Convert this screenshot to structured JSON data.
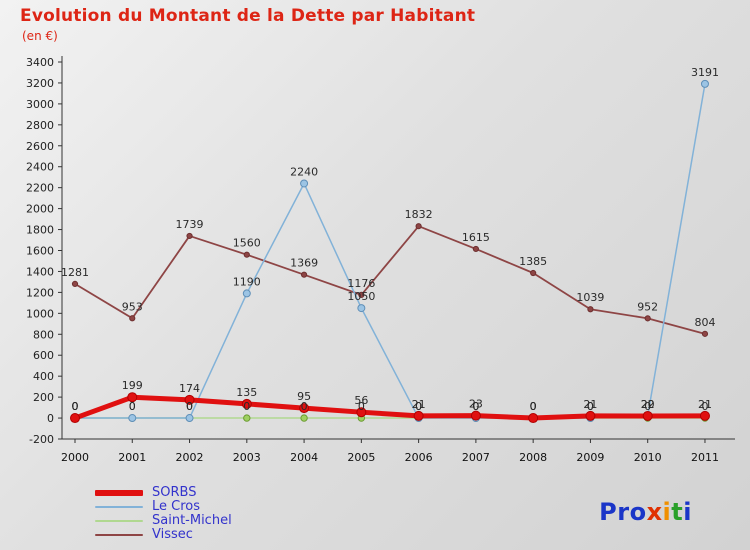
{
  "title": "Evolution du Montant de la Dette par Habitant",
  "subtitle": "(en €)",
  "colors": {
    "title_text": "#dd2515",
    "legend_text": "#3333cc",
    "axis": "#333333",
    "value_label": "#2a2a2a"
  },
  "chart_data": {
    "type": "line",
    "title": "Evolution du Montant de la Dette par Habitant",
    "subtitle": "(en €)",
    "xlabel": "",
    "ylabel": "en €",
    "ylim": [
      -200,
      3400
    ],
    "ytick_step": 200,
    "grid": false,
    "legend_position": "bottom-left",
    "x": [
      2000,
      2001,
      2002,
      2003,
      2004,
      2005,
      2006,
      2007,
      2008,
      2009,
      2010,
      2011
    ],
    "series": [
      {
        "name": "SORBS",
        "color": "#e01010",
        "line_width": 5,
        "legend_thickness": 6,
        "marker_r": 4.5,
        "marker_fill": "#e01010",
        "marker_stroke": "#b00000",
        "values": [
          0,
          199,
          174,
          135,
          95,
          56,
          21,
          23,
          0,
          21,
          20,
          21
        ]
      },
      {
        "name": "Le Cros",
        "color": "#82b2d8",
        "line_width": 1.5,
        "legend_thickness": 2,
        "marker_r": 3.5,
        "marker_fill": "#9cc4e4",
        "marker_stroke": "#5f8fb8",
        "values": [
          0,
          0,
          0,
          1190,
          2240,
          1050,
          0,
          0,
          0,
          0,
          22,
          3191
        ]
      },
      {
        "name": "Saint-Michel",
        "color": "#b0d890",
        "line_width": 1.5,
        "legend_thickness": 2,
        "marker_r": 3.2,
        "marker_fill": "#9ed060",
        "marker_stroke": "#6a9a30",
        "values": [
          0,
          0,
          0,
          0,
          0,
          0,
          0,
          0,
          0,
          0,
          0,
          0
        ]
      },
      {
        "name": "Vissec",
        "color": "#8e4545",
        "line_width": 1.8,
        "legend_thickness": 2,
        "marker_r": 2.6,
        "marker_fill": "#8e4545",
        "marker_stroke": "#6e3030",
        "values": [
          1281,
          953,
          1739,
          1560,
          1369,
          1176,
          1832,
          1615,
          1385,
          1039,
          952,
          804
        ]
      }
    ]
  },
  "logo": {
    "letters": [
      {
        "t": "P",
        "c": "#1a35c8"
      },
      {
        "t": "r",
        "c": "#1a35c8"
      },
      {
        "t": "o",
        "c": "#1a35c8"
      },
      {
        "t": "x",
        "c": "#e03000"
      },
      {
        "t": "i",
        "c": "#f09000"
      },
      {
        "t": "t",
        "c": "#2aa02a"
      },
      {
        "t": "i",
        "c": "#1a35c8"
      }
    ]
  }
}
